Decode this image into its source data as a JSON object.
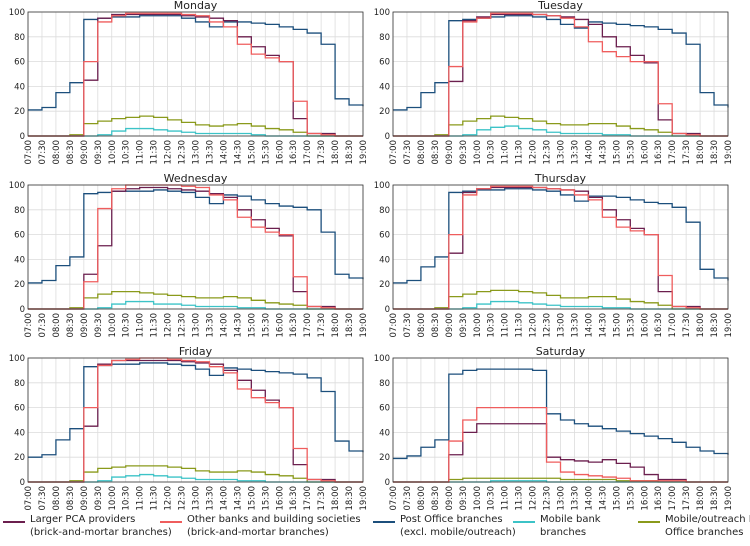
{
  "chart_data": {
    "type": "line",
    "x": [
      "07:00",
      "07:30",
      "08:00",
      "08:30",
      "09:00",
      "09:30",
      "10:00",
      "10:30",
      "11:00",
      "11:30",
      "12:00",
      "12:30",
      "13:00",
      "13:30",
      "14:00",
      "14:30",
      "15:00",
      "15:30",
      "16:00",
      "16:30",
      "17:00",
      "17:30",
      "18:00",
      "18:30",
      "19:00"
    ],
    "ylim": [
      0,
      100
    ],
    "yticks": [
      0,
      20,
      40,
      60,
      80,
      100
    ],
    "grid": true,
    "step": true,
    "legend": {
      "placement": "bottom",
      "entries": [
        {
          "line1": "Larger PCA providers",
          "line2": "(brick-and-mortar branches)",
          "color": "#6b1f4e"
        },
        {
          "line1": "Other banks and building societies",
          "line2": "(brick-and-mortar branches)",
          "color": "#ef5d5d"
        },
        {
          "line1": "Post Office branches",
          "line2": "(excl. mobile/outreach)",
          "color": "#1c4f7c"
        },
        {
          "line1": "Mobile bank",
          "line2": "branches",
          "color": "#3cc3c7"
        },
        {
          "line1": "Mobile/outreach Post",
          "line2": "Office branches",
          "color": "#8a9a1b"
        }
      ]
    },
    "panels": [
      {
        "title": "Monday",
        "series": [
          [
            0,
            0,
            0,
            0,
            45,
            95,
            98,
            98,
            98,
            98,
            98,
            97,
            96,
            95,
            93,
            80,
            72,
            65,
            60,
            14,
            2,
            2,
            0,
            0,
            0
          ],
          [
            0,
            0,
            0,
            0,
            60,
            92,
            97,
            99,
            99,
            99,
            99,
            98,
            97,
            92,
            88,
            74,
            66,
            63,
            60,
            28,
            2,
            1,
            0,
            0,
            0
          ],
          [
            21,
            23,
            35,
            43,
            94,
            95,
            96,
            96,
            97,
            97,
            97,
            95,
            92,
            88,
            92,
            92,
            91,
            90,
            88,
            86,
            83,
            74,
            30,
            25,
            24
          ],
          [
            0,
            0,
            0,
            0,
            0,
            1,
            4,
            6,
            6,
            5,
            4,
            3,
            2,
            2,
            2,
            2,
            1,
            0,
            0,
            0,
            0,
            0,
            0,
            0,
            0
          ],
          [
            0,
            0,
            0,
            1,
            10,
            12,
            14,
            15,
            16,
            15,
            13,
            11,
            9,
            8,
            9,
            10,
            8,
            6,
            5,
            3,
            0,
            0,
            0,
            0,
            0
          ]
        ]
      },
      {
        "title": "Tuesday",
        "series": [
          [
            0,
            0,
            0,
            0,
            44,
            93,
            96,
            98,
            98,
            98,
            98,
            97,
            96,
            94,
            90,
            80,
            72,
            65,
            59,
            13,
            2,
            2,
            0,
            0,
            0
          ],
          [
            0,
            0,
            0,
            0,
            56,
            92,
            95,
            99,
            99,
            99,
            98,
            97,
            95,
            88,
            76,
            68,
            64,
            60,
            60,
            26,
            2,
            1,
            0,
            0,
            0
          ],
          [
            21,
            23,
            35,
            43,
            93,
            94,
            95,
            96,
            97,
            97,
            96,
            94,
            90,
            87,
            92,
            91,
            90,
            89,
            88,
            86,
            83,
            74,
            35,
            25,
            23
          ],
          [
            0,
            0,
            0,
            0,
            0,
            1,
            5,
            7,
            8,
            6,
            5,
            3,
            2,
            2,
            2,
            1,
            1,
            0,
            0,
            0,
            0,
            0,
            0,
            0,
            0
          ],
          [
            0,
            0,
            0,
            1,
            9,
            12,
            14,
            16,
            15,
            14,
            12,
            10,
            9,
            9,
            10,
            10,
            8,
            6,
            5,
            3,
            0,
            0,
            0,
            0,
            0
          ]
        ]
      },
      {
        "title": "Wednesday",
        "series": [
          [
            0,
            0,
            0,
            0,
            28,
            51,
            95,
            97,
            98,
            98,
            97,
            96,
            95,
            93,
            90,
            80,
            72,
            65,
            59,
            14,
            2,
            2,
            0,
            0,
            0
          ],
          [
            0,
            0,
            0,
            0,
            22,
            81,
            97,
            100,
            100,
            100,
            100,
            99,
            98,
            92,
            88,
            74,
            66,
            62,
            60,
            26,
            2,
            1,
            0,
            0,
            0
          ],
          [
            21,
            23,
            35,
            42,
            93,
            94,
            95,
            95,
            95,
            96,
            95,
            94,
            90,
            85,
            92,
            91,
            88,
            85,
            83,
            82,
            80,
            62,
            28,
            25,
            24
          ],
          [
            0,
            0,
            0,
            0,
            0,
            1,
            4,
            6,
            6,
            4,
            4,
            3,
            2,
            2,
            2,
            1,
            1,
            0,
            0,
            0,
            0,
            0,
            0,
            0,
            0
          ],
          [
            0,
            0,
            0,
            1,
            9,
            12,
            14,
            14,
            13,
            12,
            11,
            10,
            9,
            9,
            10,
            9,
            7,
            5,
            4,
            3,
            0,
            0,
            0,
            0,
            0
          ]
        ]
      },
      {
        "title": "Thursday",
        "series": [
          [
            0,
            0,
            0,
            0,
            45,
            94,
            97,
            98,
            98,
            98,
            98,
            97,
            96,
            95,
            90,
            80,
            72,
            65,
            60,
            14,
            2,
            2,
            0,
            0,
            0
          ],
          [
            0,
            0,
            0,
            0,
            60,
            92,
            97,
            99,
            99,
            99,
            98,
            97,
            96,
            92,
            88,
            74,
            66,
            63,
            60,
            27,
            2,
            1,
            0,
            0,
            0
          ],
          [
            21,
            23,
            34,
            42,
            94,
            95,
            96,
            96,
            97,
            97,
            96,
            95,
            92,
            87,
            91,
            91,
            90,
            88,
            86,
            85,
            82,
            70,
            32,
            25,
            23
          ],
          [
            0,
            0,
            0,
            0,
            0,
            1,
            4,
            6,
            6,
            5,
            4,
            3,
            2,
            2,
            2,
            1,
            1,
            0,
            0,
            0,
            0,
            0,
            0,
            0,
            0
          ],
          [
            0,
            0,
            0,
            1,
            10,
            12,
            14,
            15,
            15,
            14,
            13,
            11,
            9,
            9,
            10,
            10,
            8,
            6,
            5,
            3,
            0,
            0,
            0,
            0,
            0
          ]
        ]
      },
      {
        "title": "Friday",
        "series": [
          [
            0,
            0,
            0,
            0,
            45,
            95,
            98,
            98,
            98,
            98,
            98,
            97,
            96,
            95,
            90,
            82,
            74,
            66,
            60,
            14,
            2,
            2,
            0,
            0,
            0
          ],
          [
            0,
            0,
            0,
            0,
            60,
            94,
            98,
            99,
            100,
            100,
            99,
            98,
            97,
            93,
            88,
            75,
            68,
            64,
            60,
            27,
            2,
            1,
            0,
            0,
            0
          ],
          [
            20,
            22,
            34,
            43,
            93,
            94,
            95,
            95,
            96,
            96,
            95,
            94,
            91,
            86,
            92,
            91,
            90,
            89,
            88,
            87,
            84,
            73,
            33,
            25,
            24
          ],
          [
            0,
            0,
            0,
            0,
            0,
            1,
            4,
            5,
            6,
            5,
            4,
            3,
            2,
            2,
            2,
            1,
            1,
            0,
            0,
            0,
            0,
            0,
            0,
            0,
            0
          ],
          [
            0,
            0,
            0,
            1,
            8,
            11,
            12,
            13,
            13,
            13,
            12,
            11,
            9,
            8,
            8,
            9,
            8,
            6,
            5,
            3,
            0,
            0,
            0,
            0,
            0
          ]
        ]
      },
      {
        "title": "Saturday",
        "series": [
          [
            0,
            0,
            0,
            0,
            22,
            40,
            47,
            47,
            47,
            47,
            47,
            20,
            18,
            17,
            16,
            18,
            15,
            12,
            6,
            2,
            2,
            0,
            0,
            0,
            0
          ],
          [
            0,
            0,
            0,
            0,
            33,
            50,
            60,
            60,
            60,
            60,
            60,
            16,
            8,
            6,
            5,
            4,
            3,
            1,
            1,
            1,
            1,
            0,
            0,
            0,
            0
          ],
          [
            19,
            21,
            28,
            34,
            87,
            90,
            91,
            91,
            91,
            91,
            90,
            55,
            50,
            47,
            45,
            43,
            41,
            39,
            37,
            35,
            32,
            28,
            25,
            23,
            22
          ],
          [
            0,
            0,
            0,
            0,
            0,
            0,
            0,
            1,
            1,
            1,
            1,
            0,
            0,
            0,
            0,
            0,
            0,
            0,
            0,
            0,
            0,
            0,
            0,
            0,
            0
          ],
          [
            0,
            0,
            0,
            0,
            2,
            3,
            3,
            3,
            3,
            3,
            3,
            3,
            2,
            2,
            2,
            2,
            1,
            1,
            1,
            0,
            0,
            0,
            0,
            0,
            0
          ]
        ]
      }
    ]
  }
}
